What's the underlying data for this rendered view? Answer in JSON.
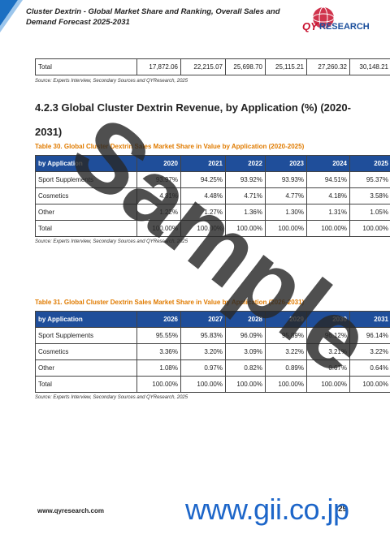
{
  "header": {
    "title": "Cluster Dextrin - Global Market Share and Ranking, Overall Sales and Demand Forecast 2025-2031",
    "logo_qy": "QY",
    "logo_research": "RESEARCH"
  },
  "top_table": {
    "rows": [
      [
        "Total",
        "17,872.06",
        "22,215.07",
        "25,698.70",
        "25,115.21",
        "27,260.32",
        "30,148.21"
      ]
    ],
    "source": "Source: Experts Interview, Secondary Sources and QYResearch, 2025"
  },
  "section_heading": "4.2.3 Global Cluster Dextrin Revenue, by Application (%) (2020-2031)",
  "tables": [
    {
      "caption": "Table 30.   Global Cluster Dextrin Sales Market Share in Value by Application (2020-2025)",
      "columns": [
        "by Application",
        "2020",
        "2021",
        "2022",
        "2023",
        "2024",
        "2025"
      ],
      "rows": [
        [
          "Sport Supplements",
          "93.97%",
          "94.25%",
          "93.92%",
          "93.93%",
          "94.51%",
          "95.37%"
        ],
        [
          "Cosmetics",
          "4.81%",
          "4.48%",
          "4.71%",
          "4.77%",
          "4.18%",
          "3.58%"
        ],
        [
          "Other",
          "1.22%",
          "1.27%",
          "1.36%",
          "1.30%",
          "1.31%",
          "1.05%"
        ],
        [
          "Total",
          "100.00%",
          "100.00%",
          "100.00%",
          "100.00%",
          "100.00%",
          "100.00%"
        ]
      ],
      "source": "Source: Experts Interview, Secondary Sources and QYResearch, 2025"
    },
    {
      "caption": "Table 31.   Global Cluster Dextrin Sales Market Share in Value by Application (2026-2031)",
      "columns": [
        "by Application",
        "2026",
        "2027",
        "2028",
        "2029",
        "2030",
        "2031"
      ],
      "rows": [
        [
          "Sport Supplements",
          "95.55%",
          "95.83%",
          "96.09%",
          "95.89%",
          "96.12%",
          "96.14%"
        ],
        [
          "Cosmetics",
          "3.36%",
          "3.20%",
          "3.09%",
          "3.22%",
          "3.21%",
          "3.22%"
        ],
        [
          "Other",
          "1.08%",
          "0.97%",
          "0.82%",
          "0.89%",
          "0.67%",
          "0.64%"
        ],
        [
          "Total",
          "100.00%",
          "100.00%",
          "100.00%",
          "100.00%",
          "100.00%",
          "100.00%"
        ]
      ],
      "source": "Source: Experts Interview, Secondary Sources and QYResearch, 2025"
    }
  ],
  "footer": {
    "url": "www.qyresearch.com",
    "page": "29"
  },
  "watermark": {
    "sample": "Sample",
    "site": "www.gii.co.jp"
  }
}
